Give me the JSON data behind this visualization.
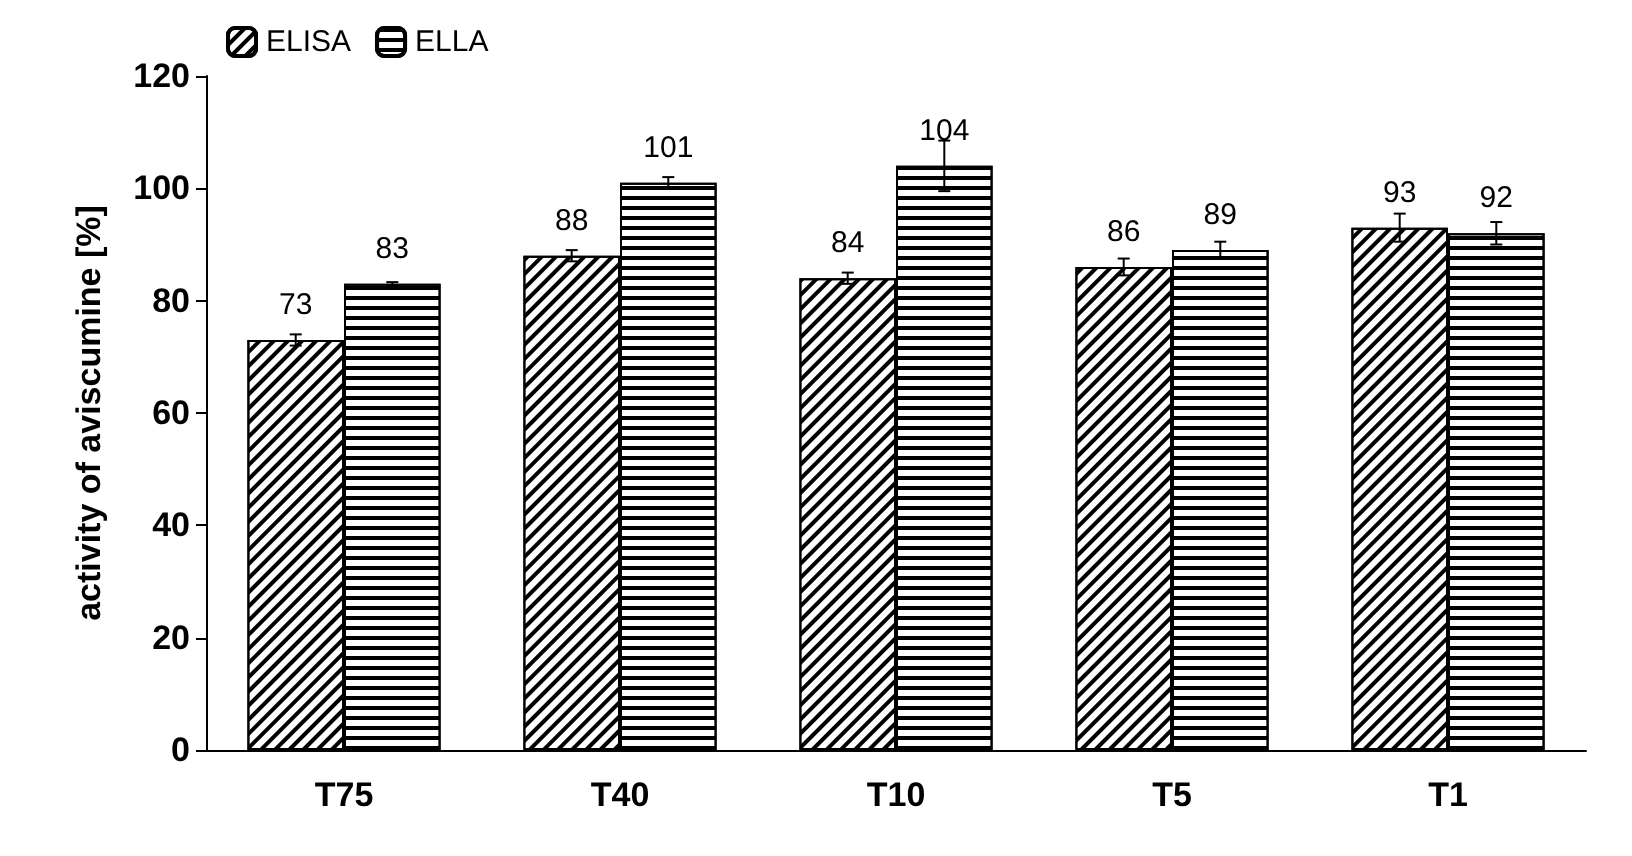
{
  "chart_data": {
    "type": "bar",
    "ylabel": "activity of aviscumine [%]",
    "categories": [
      "T75",
      "T40",
      "T10",
      "T5",
      "T1"
    ],
    "series": [
      {
        "name": "ELISA",
        "color": "#000000",
        "values": [
          73,
          88,
          84,
          86,
          93
        ],
        "errors": [
          1,
          1,
          1,
          1.5,
          2.5
        ]
      },
      {
        "name": "ELLA",
        "color": "#000000",
        "values": [
          83,
          101,
          104,
          89,
          92
        ],
        "errors": [
          0.3,
          1,
          4.5,
          1.5,
          2
        ]
      }
    ],
    "ylim": [
      0,
      120
    ],
    "yticks": [
      0,
      20,
      40,
      60,
      80,
      100,
      120
    ],
    "grid": false,
    "legend": "top left",
    "data_labels": true
  }
}
